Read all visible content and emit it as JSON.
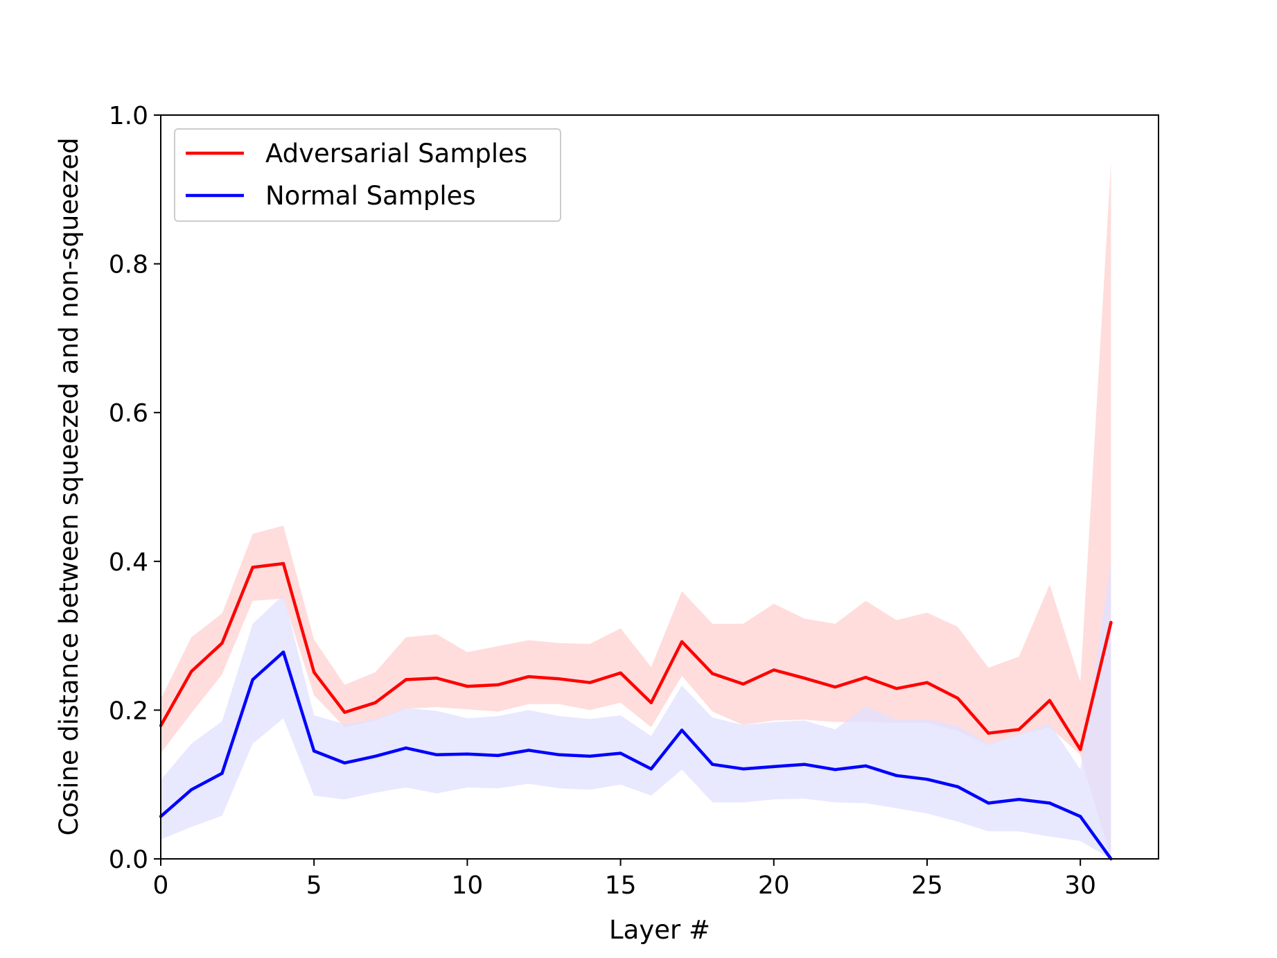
{
  "chart_data": {
    "type": "line",
    "title": "",
    "xlabel": "Layer #",
    "ylabel": "Cosine distance between squeezed and non-squeezed",
    "xlim": [
      0,
      32.55
    ],
    "ylim": [
      0,
      1.0
    ],
    "xticks": [
      0,
      5,
      10,
      15,
      20,
      25,
      30
    ],
    "xtick_labels": [
      "0",
      "5",
      "10",
      "15",
      "20",
      "25",
      "30"
    ],
    "yticks": [
      0.0,
      0.2,
      0.4,
      0.6,
      0.8,
      1.0
    ],
    "ytick_labels": [
      "0.0",
      "0.2",
      "0.4",
      "0.6",
      "0.8",
      "1.0"
    ],
    "grid": false,
    "legend_position": "top-left",
    "x": [
      0,
      1,
      2,
      3,
      4,
      5,
      6,
      7,
      8,
      9,
      10,
      11,
      12,
      13,
      14,
      15,
      16,
      17,
      18,
      19,
      20,
      21,
      22,
      23,
      24,
      25,
      26,
      27,
      28,
      29,
      30,
      31
    ],
    "series": [
      {
        "name": "Adversarial Samples",
        "color": "#ff0000",
        "band_color": "#ffdddd",
        "values": [
          0.179,
          0.252,
          0.29,
          0.392,
          0.397,
          0.251,
          0.197,
          0.21,
          0.241,
          0.243,
          0.232,
          0.234,
          0.245,
          0.242,
          0.237,
          0.25,
          0.21,
          0.292,
          0.249,
          0.235,
          0.254,
          0.243,
          0.231,
          0.244,
          0.229,
          0.237,
          0.216,
          0.169,
          0.174,
          0.213,
          0.147,
          0.318
        ],
        "upper": [
          0.215,
          0.298,
          0.33,
          0.437,
          0.448,
          0.295,
          0.234,
          0.251,
          0.298,
          0.302,
          0.278,
          0.286,
          0.294,
          0.29,
          0.289,
          0.31,
          0.258,
          0.36,
          0.316,
          0.316,
          0.343,
          0.323,
          0.316,
          0.347,
          0.321,
          0.331,
          0.312,
          0.257,
          0.272,
          0.369,
          0.238,
          0.936
        ],
        "lower": [
          0.142,
          0.196,
          0.248,
          0.347,
          0.35,
          0.22,
          0.177,
          0.186,
          0.202,
          0.204,
          0.201,
          0.198,
          0.208,
          0.208,
          0.2,
          0.21,
          0.177,
          0.246,
          0.198,
          0.18,
          0.186,
          0.187,
          0.184,
          0.184,
          0.183,
          0.183,
          0.172,
          0.153,
          0.167,
          0.177,
          0.14,
          0.0
        ]
      },
      {
        "name": "Normal Samples",
        "color": "#0000ff",
        "band_color": "#e0e0ff",
        "values": [
          0.057,
          0.093,
          0.115,
          0.241,
          0.278,
          0.145,
          0.129,
          0.138,
          0.149,
          0.14,
          0.141,
          0.139,
          0.146,
          0.14,
          0.138,
          0.142,
          0.121,
          0.173,
          0.127,
          0.121,
          0.124,
          0.127,
          0.12,
          0.125,
          0.112,
          0.107,
          0.097,
          0.075,
          0.08,
          0.075,
          0.057,
          0.0
        ],
        "upper": [
          0.106,
          0.155,
          0.185,
          0.316,
          0.355,
          0.193,
          0.181,
          0.188,
          0.203,
          0.199,
          0.189,
          0.192,
          0.2,
          0.192,
          0.188,
          0.193,
          0.165,
          0.233,
          0.19,
          0.18,
          0.184,
          0.186,
          0.174,
          0.205,
          0.187,
          0.188,
          0.179,
          0.155,
          0.168,
          0.182,
          0.12,
          0.4
        ],
        "lower": [
          0.026,
          0.043,
          0.058,
          0.155,
          0.189,
          0.085,
          0.08,
          0.089,
          0.096,
          0.088,
          0.096,
          0.095,
          0.101,
          0.095,
          0.093,
          0.1,
          0.085,
          0.12,
          0.076,
          0.076,
          0.08,
          0.081,
          0.076,
          0.075,
          0.068,
          0.061,
          0.05,
          0.037,
          0.037,
          0.03,
          0.024,
          0.0
        ]
      }
    ]
  }
}
